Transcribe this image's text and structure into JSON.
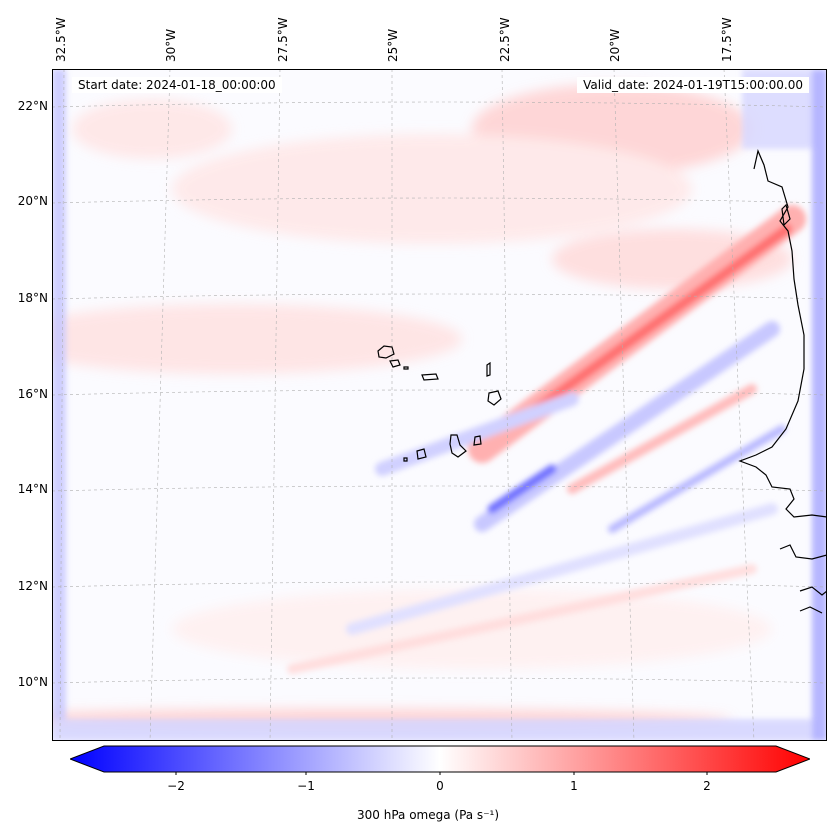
{
  "map": {
    "start_date": "Start date: 2024-01-18_00:00:00",
    "valid_date": "Valid_date: 2024-01-19T15:00:00.00",
    "lon_labels": [
      "32.5°W",
      "30°W",
      "27.5°W",
      "25°W",
      "22.5°W",
      "20°W",
      "17.5°W"
    ],
    "lat_labels": [
      "22°N",
      "20°N",
      "18°N",
      "16°N",
      "14°N",
      "12°N",
      "10°N"
    ],
    "field": "300 hPa omega"
  },
  "colorbar": {
    "label": "300 hPa omega (Pa s⁻¹)",
    "ticks": [
      "−2",
      "−1",
      "0",
      "1",
      "2"
    ],
    "tick_values": [
      -2,
      -1,
      0,
      1,
      2
    ],
    "min": -2.5,
    "max": 2.5,
    "color_low": "#0000ff",
    "color_mid": "#ffffff",
    "color_high": "#ff0000"
  }
}
